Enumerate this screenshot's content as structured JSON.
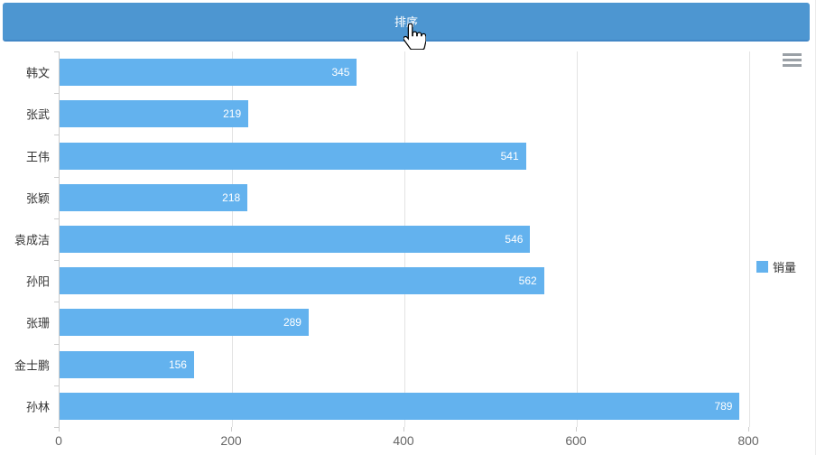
{
  "sort_button": {
    "label": "排序",
    "color": "#4d96d1"
  },
  "legend": {
    "label": "销量",
    "color": "#63b2ee"
  },
  "toolbox": {
    "icon": "hamburger-icon"
  },
  "chart_data": {
    "type": "bar",
    "orientation": "horizontal",
    "title": "",
    "series_name": "销量",
    "categories": [
      "韩文",
      "张武",
      "王伟",
      "张颖",
      "袁成洁",
      "孙阳",
      "张珊",
      "金士鹏",
      "孙林"
    ],
    "values": [
      345,
      219,
      541,
      218,
      546,
      562,
      289,
      156,
      789
    ],
    "xlim": [
      0,
      800
    ],
    "x_ticks": [
      0,
      200,
      400,
      600,
      800
    ],
    "grid": true,
    "bar_color": "#63b2ee",
    "bar_label_color": "#ffffff",
    "axis_line_color": "#cccccc",
    "grid_line_color": "#e3e3e3",
    "legend_position": "right"
  }
}
